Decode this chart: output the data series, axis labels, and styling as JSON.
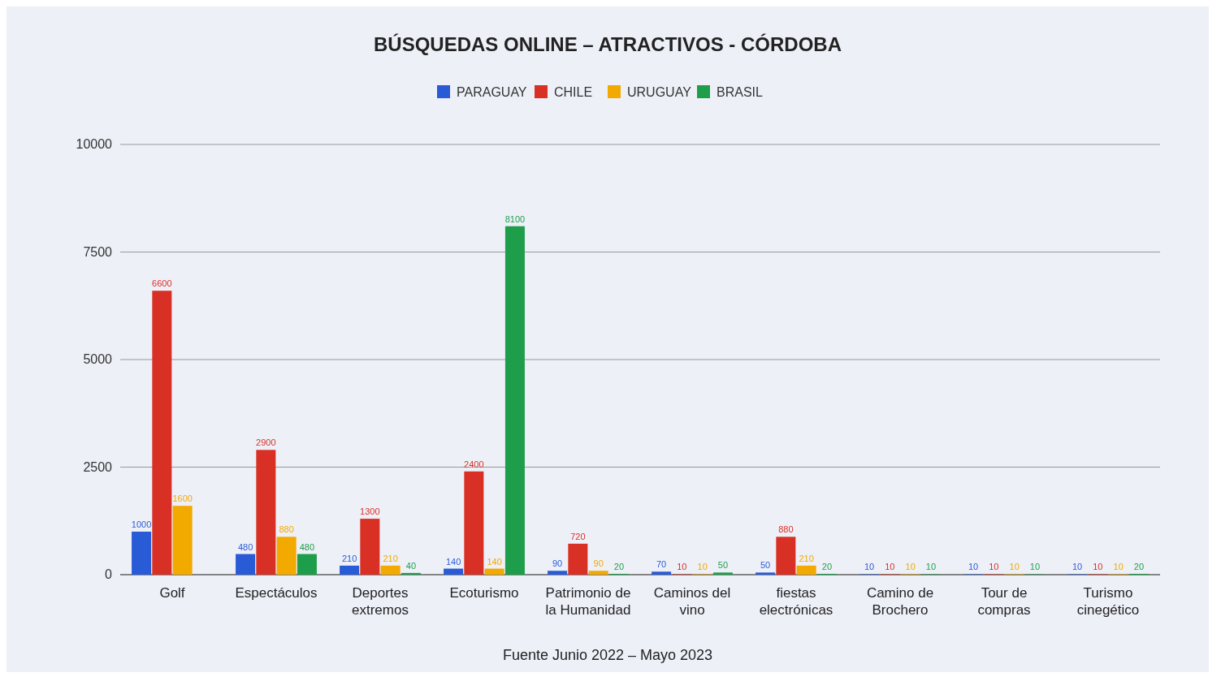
{
  "chart_data": {
    "type": "bar",
    "title": "BÚSQUEDAS ONLINE – ATRACTIVOS - CÓRDOBA",
    "categories": [
      "Golf",
      "Espectáculos",
      "Deportes extremos",
      "Ecoturismo",
      "Patrimonio de la Humanidad",
      "Caminos del vino",
      "fiestas electrónicas",
      "Camino de Brochero",
      "Tour de compras",
      "Turismo cinegético"
    ],
    "series": [
      {
        "name": "PARAGUAY",
        "color": "#2a5bd7",
        "values": [
          1000,
          480,
          210,
          140,
          90,
          70,
          50,
          10,
          10,
          10
        ]
      },
      {
        "name": "CHILE",
        "color": "#d93025",
        "values": [
          6600,
          2900,
          1300,
          2400,
          720,
          10,
          880,
          10,
          10,
          10
        ]
      },
      {
        "name": "URUGUAY",
        "color": "#f2a900",
        "values": [
          1600,
          880,
          210,
          140,
          90,
          10,
          210,
          10,
          10,
          10
        ]
      },
      {
        "name": "BRASIL",
        "color": "#1e9e4a",
        "values": [
          null,
          480,
          40,
          8100,
          20,
          50,
          20,
          10,
          10,
          20
        ]
      }
    ],
    "ylim": [
      0,
      10000
    ],
    "yticks": [
      0,
      2500,
      5000,
      7500,
      10000
    ],
    "grid": "y",
    "legend": "top",
    "data_labels": true,
    "annotations": [
      "Fuente Junio 2022 – Mayo 2023"
    ]
  }
}
